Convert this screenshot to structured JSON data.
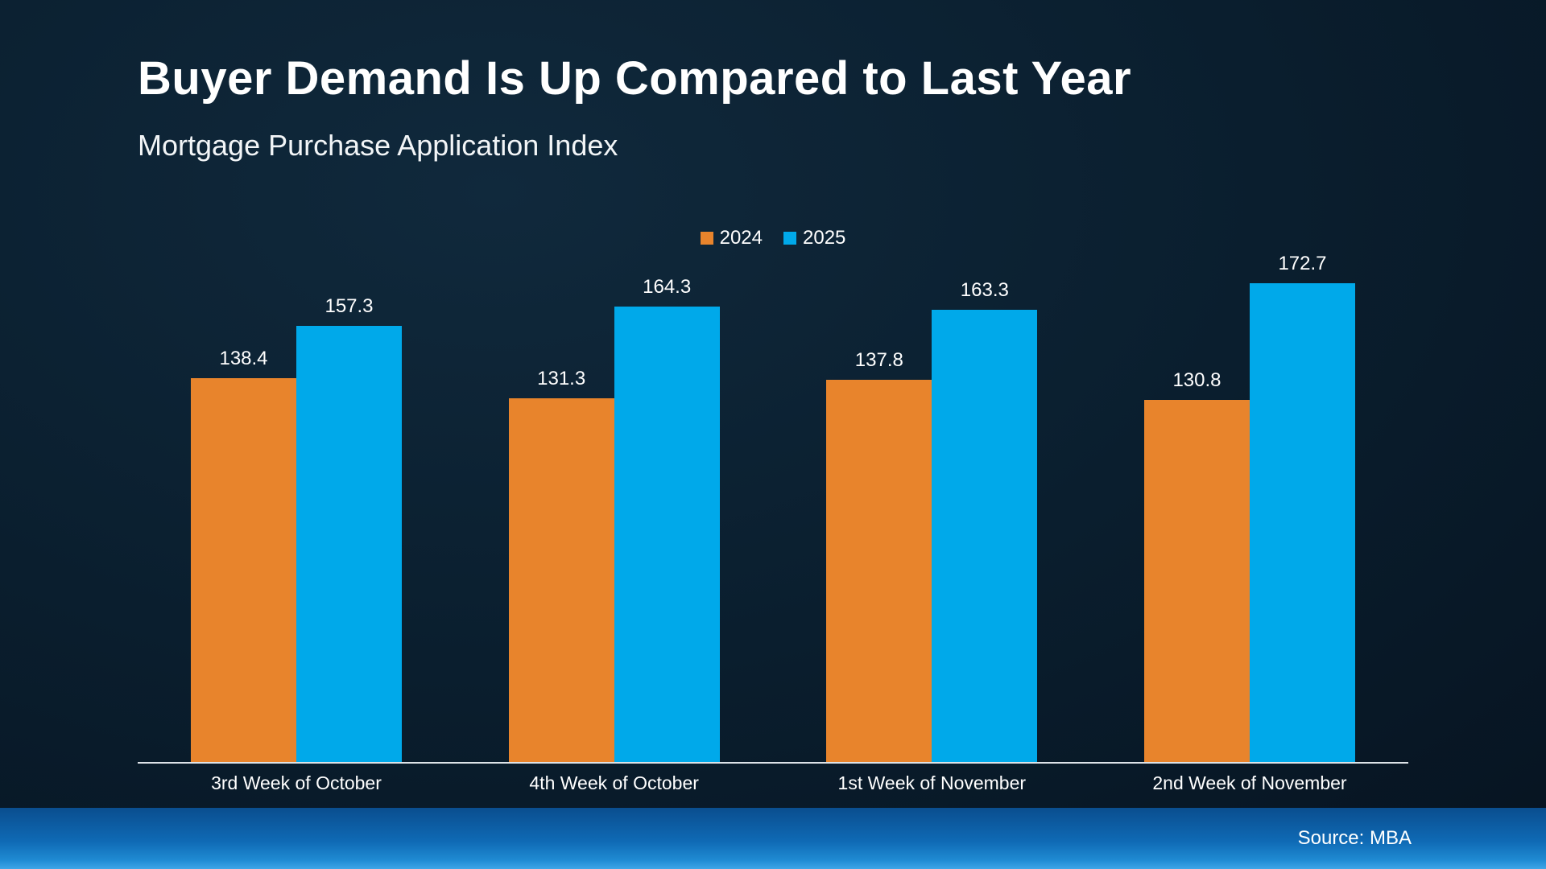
{
  "slide": {
    "title": "Buyer Demand Is Up Compared to Last Year",
    "subtitle": "Mortgage Purchase Application Index",
    "source": "Source: MBA"
  },
  "chart_data": {
    "type": "bar",
    "title": "Buyer Demand Is Up Compared to Last Year",
    "subtitle": "Mortgage Purchase Application Index",
    "categories": [
      "3rd Week of October",
      "4th Week of October",
      "1st Week of November",
      "2nd Week of November"
    ],
    "series": [
      {
        "name": "2024",
        "color": "#E8842C",
        "values": [
          138.4,
          131.3,
          137.8,
          130.8
        ]
      },
      {
        "name": "2025",
        "color": "#00A9EA",
        "values": [
          157.3,
          164.3,
          163.3,
          172.7
        ]
      }
    ],
    "ylim": [
      0,
      180
    ],
    "grid": false,
    "legend_position": "top-center",
    "value_labels": true,
    "background_color": "#0A1E2E",
    "footer_color": "#0F6AB5"
  }
}
